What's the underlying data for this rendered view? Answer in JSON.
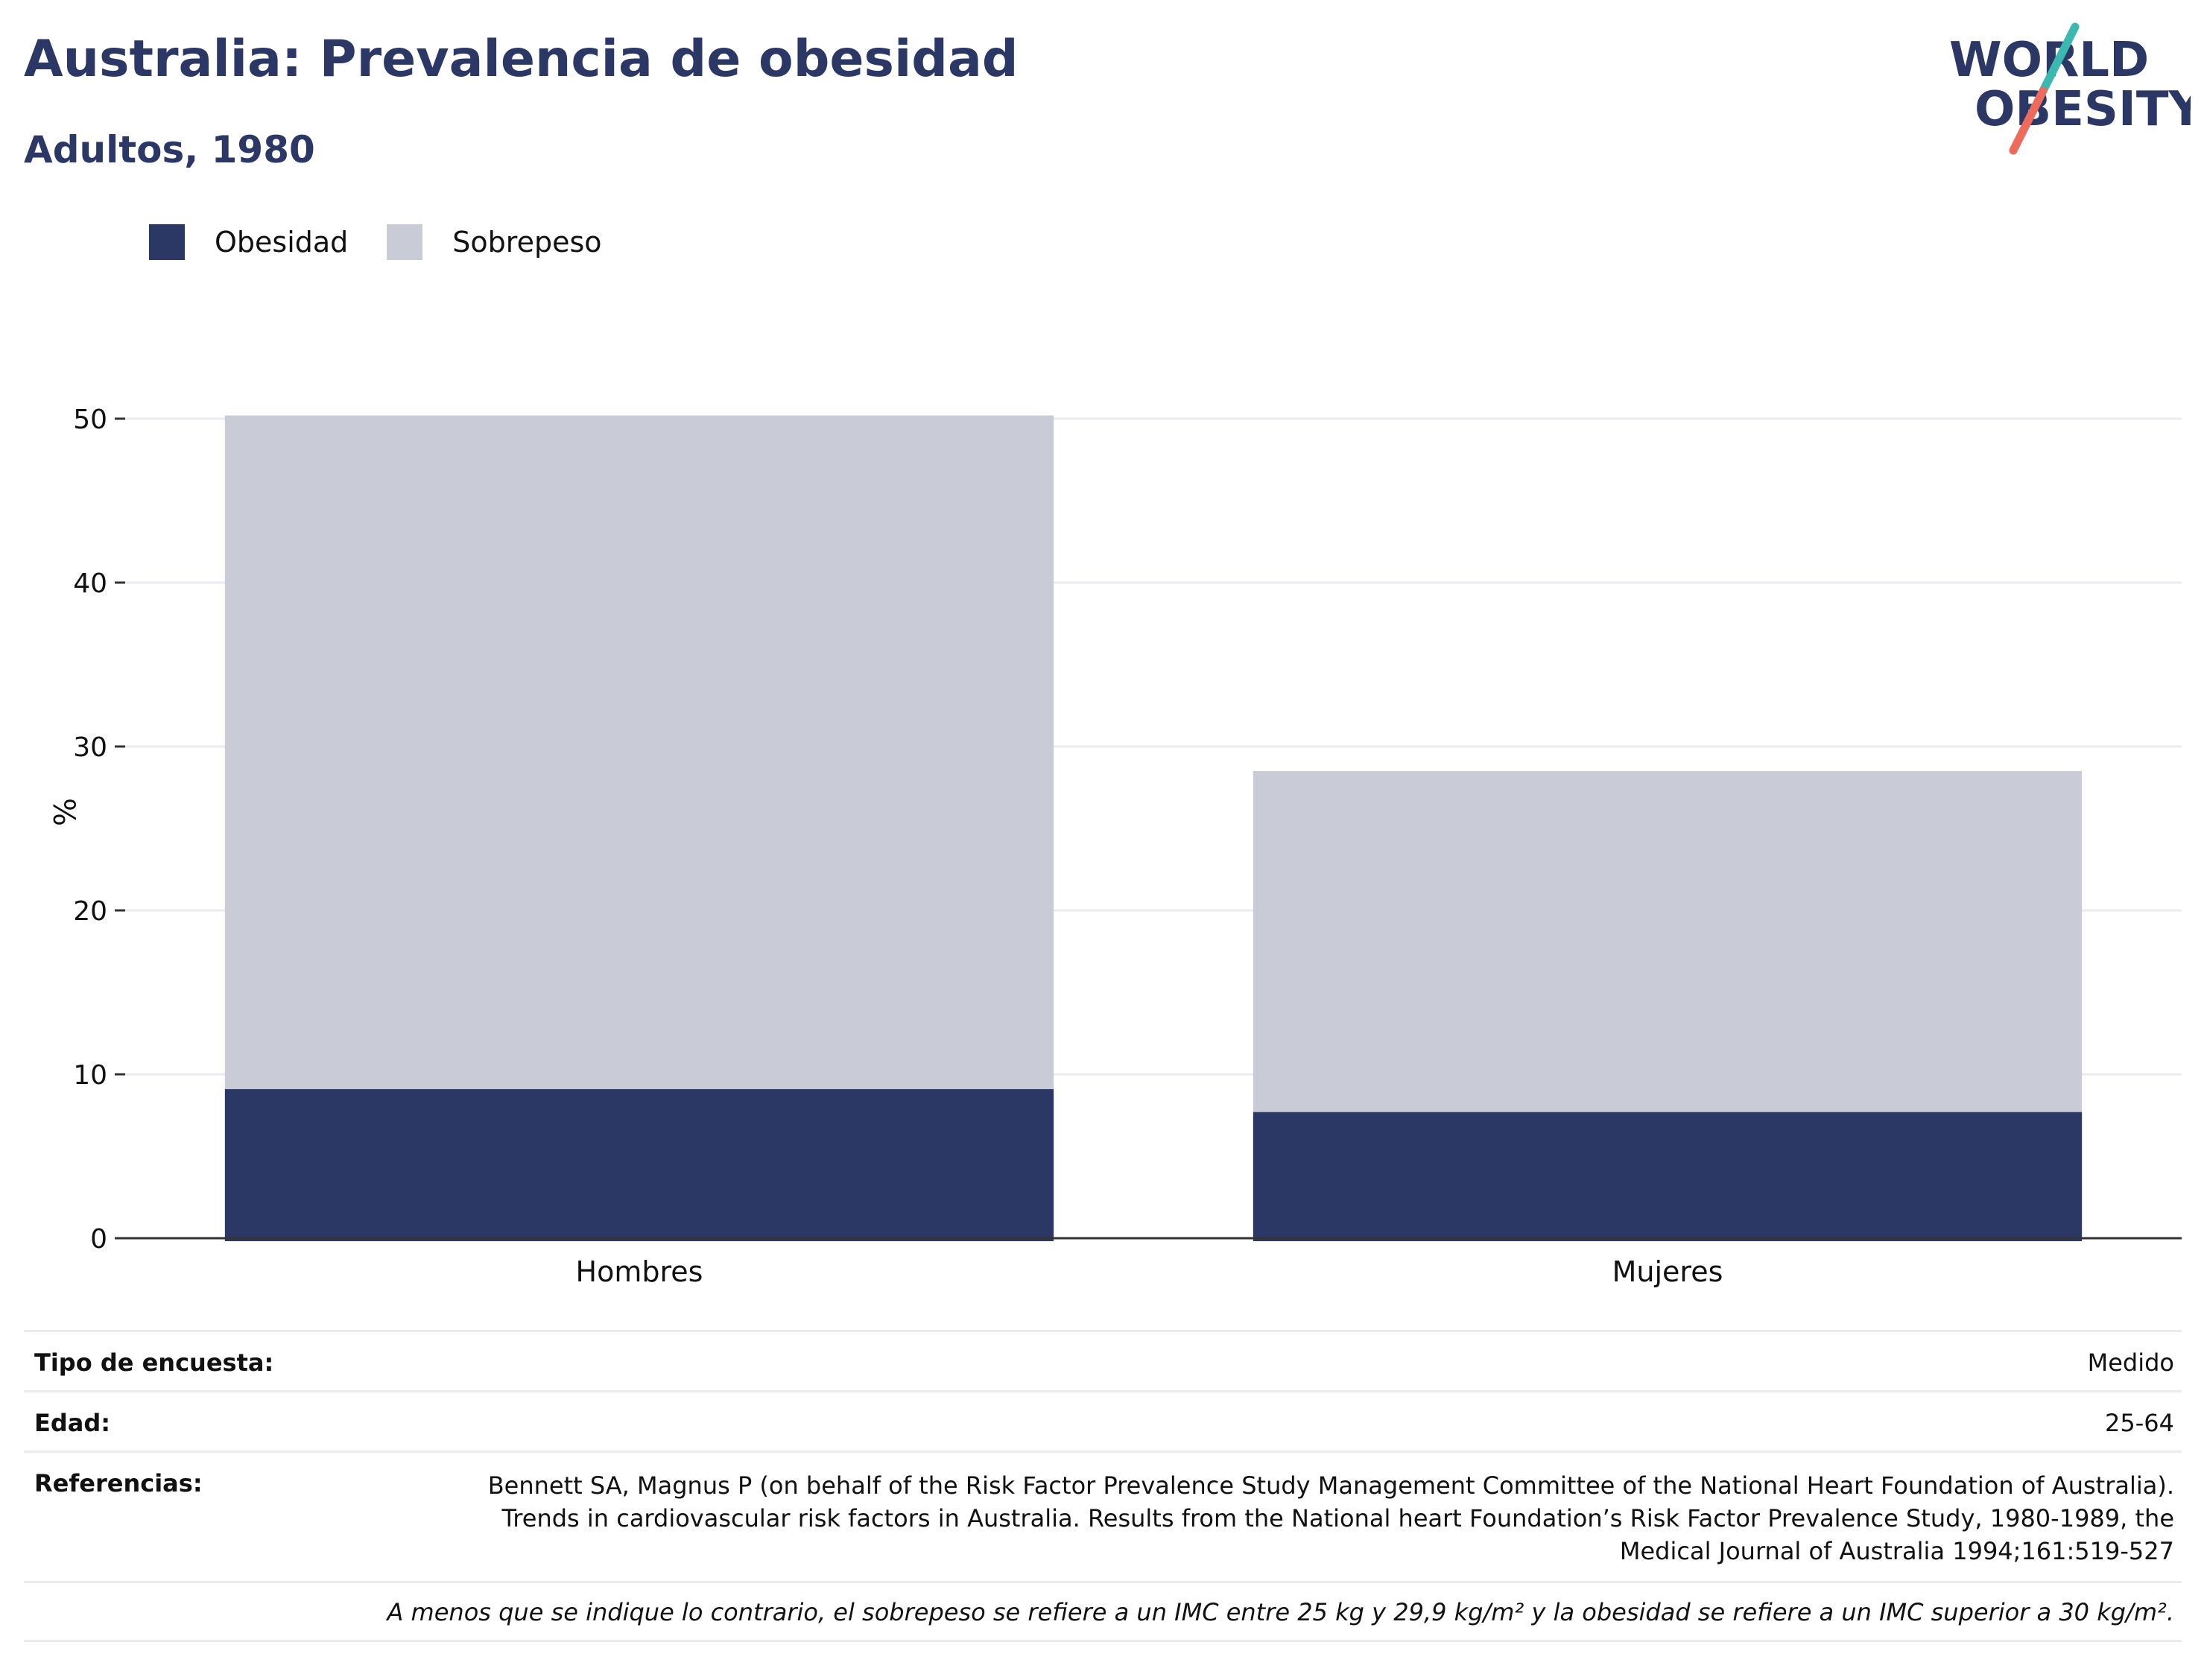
{
  "header": {
    "title": "Australia: Prevalencia de obesidad",
    "subtitle": "Adultos, 1980"
  },
  "logo": {
    "line1": "WORLD",
    "line2": "OBESITY",
    "colors": {
      "text": "#2b3765",
      "slash_teal": "#3bb8b0",
      "slash_coral": "#ec6b5c"
    }
  },
  "legend": {
    "items": [
      {
        "label": "Obesidad",
        "color": "#2b3765"
      },
      {
        "label": "Sobrepeso",
        "color": "#c9cbd7"
      }
    ]
  },
  "chart_data": {
    "type": "bar",
    "stacked": true,
    "categories": [
      "Hombres",
      "Mujeres"
    ],
    "series": [
      {
        "name": "Obesidad",
        "color": "#2b3765",
        "values": [
          9.1,
          7.7
        ]
      },
      {
        "name": "Sobrepeso",
        "color": "#c9cbd7",
        "values": [
          41.1,
          20.8
        ]
      }
    ],
    "ylabel": "%",
    "xlabel": "",
    "ylim": [
      0,
      52
    ],
    "yticks": [
      0,
      10,
      20,
      30,
      40,
      50
    ],
    "grid": true,
    "legend_position": "top-left"
  },
  "info": {
    "survey_type": {
      "label": "Tipo de encuesta:",
      "value": "Medido"
    },
    "age": {
      "label": "Edad:",
      "value": "25-64"
    },
    "references": {
      "label": "Referencias:",
      "value": "Bennett SA, Magnus P (on behalf of the Risk Factor Prevalence Study Management Committee of the National Heart Foundation of Australia). Trends in cardiovascular risk factors in Australia. Results from the National heart Foundation’s Risk Factor Prevalence Study, 1980-1989, the Medical Journal of Australia 1994;161:519-527"
    },
    "footnote": "A menos que se indique lo contrario, el sobrepeso se refiere a un IMC entre 25 kg y 29,9 kg/m² y la obesidad se refiere a un IMC superior a 30 kg/m²."
  }
}
